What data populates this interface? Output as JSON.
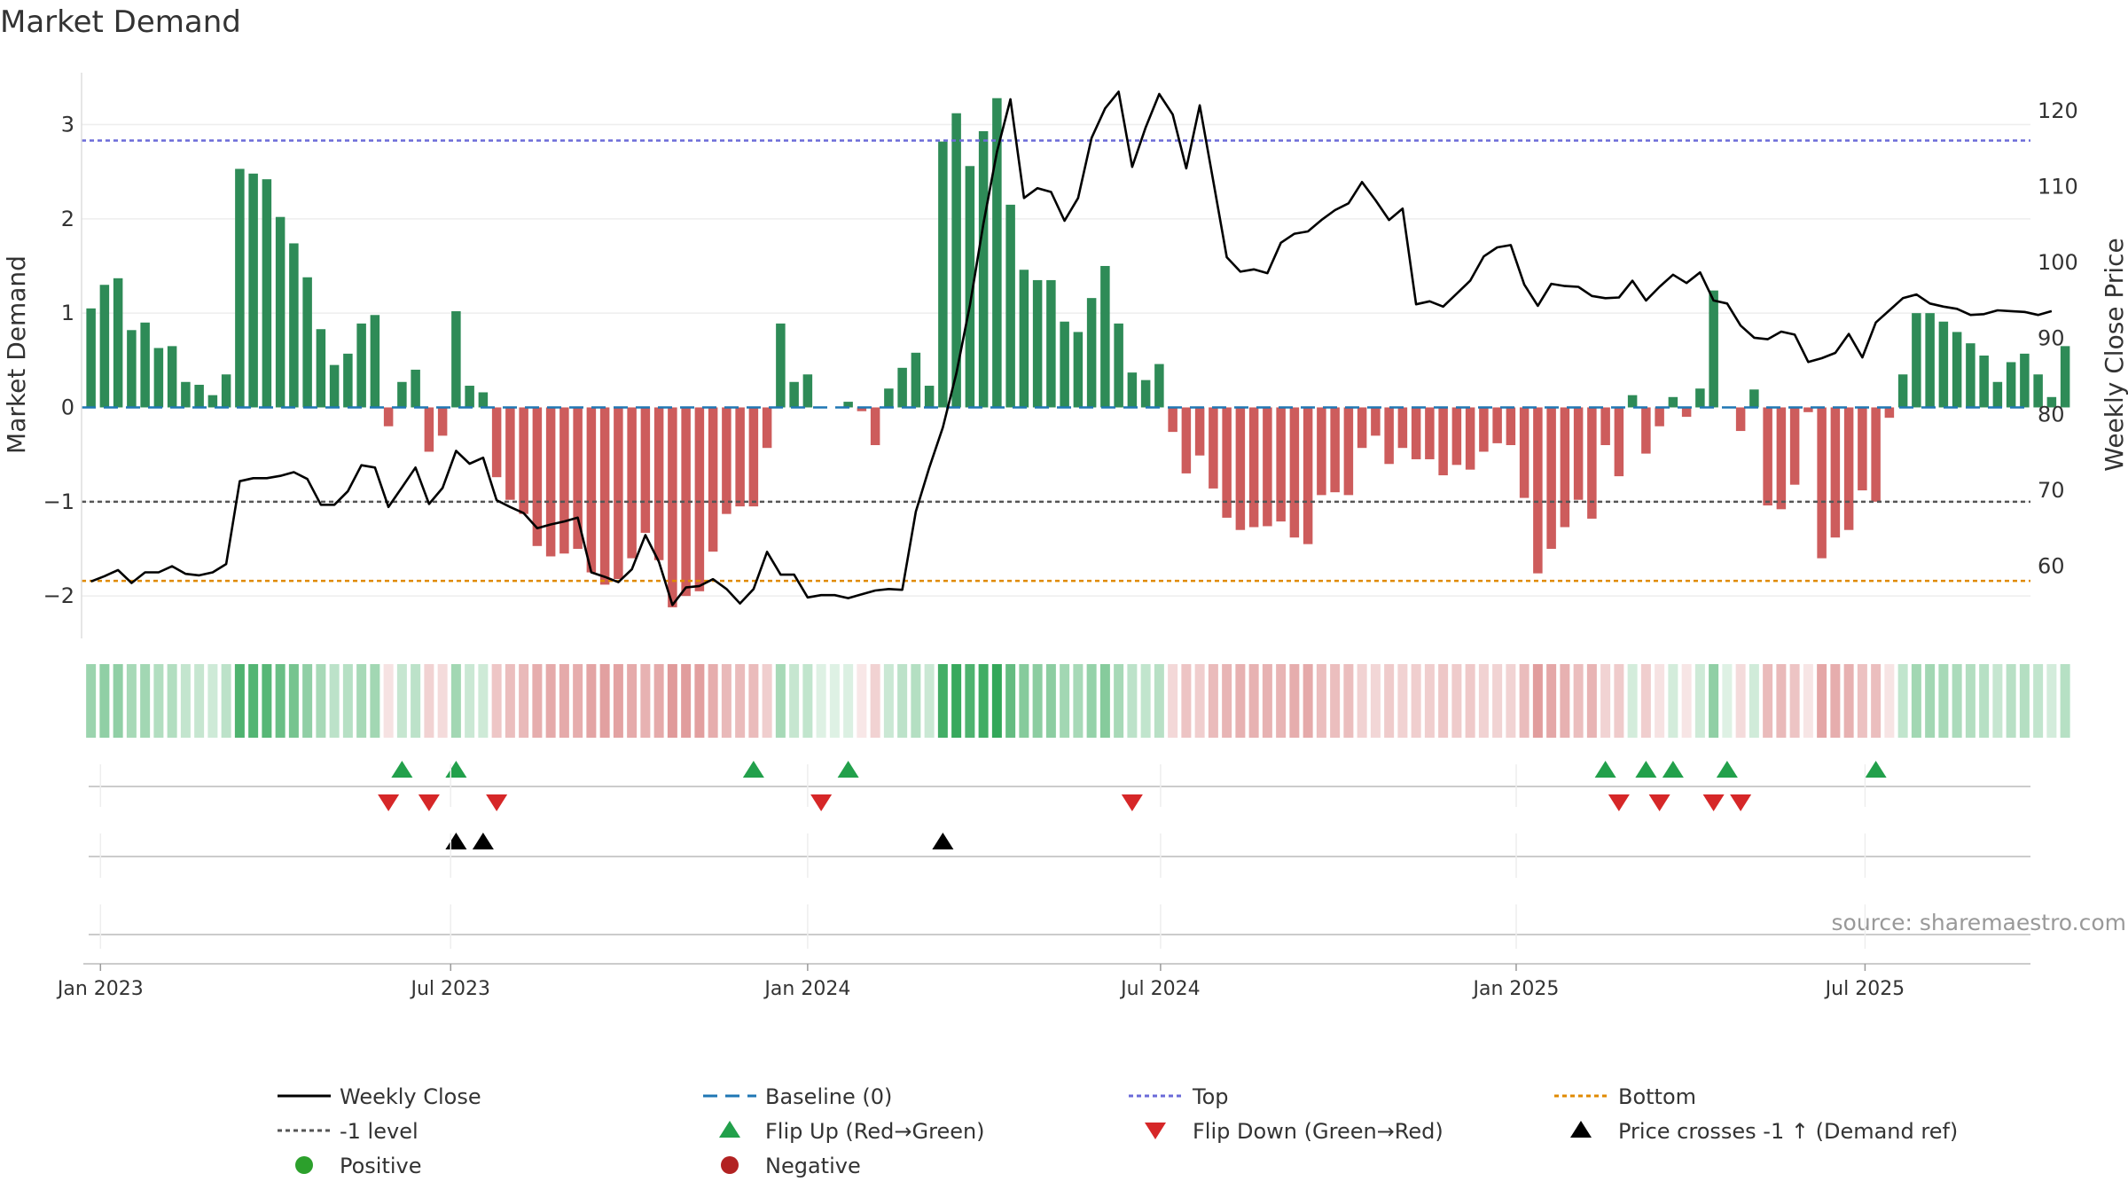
{
  "title": "Market Demand",
  "source": "source: sharemaestro.com",
  "colors": {
    "positive": "#2e8b57",
    "negative": "#cd5c5c",
    "close": "#000000",
    "baseline": "#1f77b4",
    "top": "#6a6ad8",
    "bottom": "#e08a00",
    "minus_one": "#555555",
    "flip_up": "#22a04b",
    "flip_down": "#d62728",
    "cross": "#000000",
    "positive_dot": "#2ca02c",
    "negative_dot": "#b22222"
  },
  "chart_data": {
    "type": "bar+line",
    "title": "Market Demand",
    "ylabel_left": "Market Demand",
    "ylabel_right": "Weekly Close Price",
    "ylim_left": [
      -2.45,
      3.55
    ],
    "ylim_right": [
      50.5,
      125.0
    ],
    "yticks_left": [
      "3",
      "2",
      "1",
      "0",
      "−1",
      "−2"
    ],
    "yticks_right": [
      "120",
      "110",
      "100",
      "90",
      "80",
      "70",
      "60"
    ],
    "xticks": [
      "Jan 2023",
      "Jul 2023",
      "Jan 2024",
      "Jul 2024",
      "Jan 2025",
      "Jul 2025"
    ],
    "reference_lines": {
      "top": 2.83,
      "bottom": -1.84,
      "minus_one": -1.0,
      "baseline": 0
    },
    "demand": [
      1.05,
      1.3,
      1.37,
      0.82,
      0.9,
      0.63,
      0.65,
      0.27,
      0.24,
      0.13,
      0.35,
      2.53,
      2.48,
      2.42,
      2.02,
      1.74,
      1.38,
      0.83,
      0.45,
      0.57,
      0.89,
      0.98,
      -0.2,
      0.27,
      0.4,
      -0.47,
      -0.3,
      1.02,
      0.23,
      0.16,
      -0.74,
      -0.98,
      -1.13,
      -1.47,
      -1.58,
      -1.55,
      -1.5,
      -1.75,
      -1.88,
      -1.82,
      -1.6,
      -1.33,
      -1.62,
      -2.12,
      -2.0,
      -1.95,
      -1.53,
      -1.13,
      -1.05,
      -1.05,
      -0.43,
      0.89,
      0.27,
      0.35,
      0.0,
      0.0,
      0.06,
      -0.04,
      -0.4,
      0.2,
      0.42,
      0.58,
      0.23,
      2.82,
      3.12,
      2.56,
      2.93,
      3.28,
      2.15,
      1.46,
      1.35,
      1.35,
      0.91,
      0.8,
      1.16,
      1.5,
      0.89,
      0.37,
      0.29,
      0.46,
      -0.26,
      -0.7,
      -0.51,
      -0.86,
      -1.17,
      -1.3,
      -1.27,
      -1.26,
      -1.21,
      -1.38,
      -1.45,
      -0.93,
      -0.9,
      -0.93,
      -0.43,
      -0.3,
      -0.6,
      -0.43,
      -0.55,
      -0.55,
      -0.72,
      -0.61,
      -0.66,
      -0.47,
      -0.38,
      -0.4,
      -0.96,
      -1.76,
      -1.5,
      -1.27,
      -0.98,
      -1.18,
      -0.4,
      -0.73,
      0.13,
      -0.49,
      -0.2,
      0.11,
      -0.1,
      0.2,
      1.24,
      0.0,
      -0.25,
      0.19,
      -1.04,
      -1.08,
      -0.82,
      -0.05,
      -1.6,
      -1.38,
      -1.3,
      -0.88,
      -1.0,
      -0.11,
      0.35,
      1.0,
      1.0,
      0.91,
      0.8,
      0.68,
      0.55,
      0.27,
      0.48,
      0.57,
      0.35,
      0.11,
      0.65
    ],
    "weekly_close": [
      58.0,
      58.7,
      59.5,
      57.8,
      59.2,
      59.2,
      60.0,
      59.0,
      58.8,
      59.2,
      60.3,
      71.2,
      71.6,
      71.6,
      71.9,
      72.4,
      71.5,
      68.1,
      68.1,
      69.9,
      73.3,
      73.0,
      67.8,
      70.4,
      73.0,
      68.2,
      70.3,
      75.2,
      73.5,
      74.3,
      68.7,
      67.8,
      67.0,
      65.0,
      65.5,
      65.9,
      66.4,
      59.2,
      58.6,
      57.9,
      59.6,
      64.1,
      60.6,
      54.9,
      57.2,
      57.4,
      58.3,
      57.0,
      55.1,
      57.0,
      61.9,
      58.9,
      58.9,
      55.9,
      56.2,
      56.2,
      55.8,
      56.3,
      56.8,
      57.0,
      56.9,
      67.2,
      73.0,
      78.3,
      85.4,
      94.4,
      105.1,
      114.6,
      121.5,
      108.5,
      109.8,
      109.3,
      105.5,
      108.5,
      116.4,
      120.3,
      122.5,
      112.6,
      117.8,
      122.2,
      119.5,
      112.4,
      120.7,
      110.7,
      100.7,
      98.8,
      99.1,
      98.6,
      102.6,
      103.8,
      104.1,
      105.6,
      106.9,
      107.8,
      110.6,
      108.2,
      105.6,
      107.1,
      94.5,
      94.9,
      94.2,
      95.9,
      97.6,
      100.8,
      102.0,
      102.3,
      97.1,
      94.3,
      97.2,
      96.9,
      96.8,
      95.6,
      95.3,
      95.4,
      97.6,
      95.0,
      96.8,
      98.4,
      97.3,
      98.7,
      95.0,
      94.6,
      91.7,
      90.1,
      89.9,
      90.9,
      90.5,
      86.9,
      87.4,
      88.1,
      90.6,
      87.5,
      92.1,
      93.7,
      95.3,
      95.8,
      94.6,
      94.2,
      93.9,
      93.1,
      93.2,
      93.7,
      93.6,
      93.5,
      93.1,
      93.6
    ],
    "heat_strip_alpha": [
      0.45,
      0.5,
      0.5,
      0.4,
      0.42,
      0.35,
      0.35,
      0.27,
      0.26,
      0.22,
      0.3,
      0.8,
      0.78,
      0.76,
      0.68,
      0.62,
      0.5,
      0.4,
      0.3,
      0.33,
      0.4,
      0.42,
      0.18,
      0.26,
      0.3,
      0.28,
      0.22,
      0.42,
      0.24,
      0.22,
      0.35,
      0.4,
      0.43,
      0.5,
      0.52,
      0.52,
      0.5,
      0.56,
      0.58,
      0.57,
      0.52,
      0.47,
      0.52,
      0.62,
      0.6,
      0.59,
      0.5,
      0.43,
      0.42,
      0.42,
      0.3,
      0.4,
      0.26,
      0.28,
      0.15,
      0.15,
      0.16,
      0.15,
      0.28,
      0.24,
      0.3,
      0.34,
      0.24,
      0.85,
      0.9,
      0.8,
      0.86,
      0.92,
      0.7,
      0.55,
      0.52,
      0.52,
      0.42,
      0.4,
      0.48,
      0.55,
      0.4,
      0.3,
      0.28,
      0.32,
      0.24,
      0.36,
      0.3,
      0.42,
      0.45,
      0.48,
      0.47,
      0.47,
      0.46,
      0.5,
      0.52,
      0.4,
      0.4,
      0.4,
      0.28,
      0.25,
      0.32,
      0.28,
      0.3,
      0.3,
      0.34,
      0.32,
      0.33,
      0.28,
      0.27,
      0.27,
      0.41,
      0.6,
      0.54,
      0.48,
      0.4,
      0.46,
      0.27,
      0.32,
      0.2,
      0.3,
      0.18,
      0.2,
      0.16,
      0.22,
      0.5,
      0.15,
      0.22,
      0.21,
      0.42,
      0.43,
      0.36,
      0.16,
      0.55,
      0.5,
      0.48,
      0.38,
      0.4,
      0.17,
      0.28,
      0.42,
      0.42,
      0.4,
      0.38,
      0.35,
      0.33,
      0.26,
      0.32,
      0.34,
      0.28,
      0.2,
      0.33
    ],
    "flip_up_indices": [
      23,
      27,
      49,
      56,
      112,
      115,
      117,
      121,
      132
    ],
    "flip_down_indices": [
      22,
      25,
      30,
      54,
      77,
      113,
      116,
      120,
      122
    ],
    "price_cross_indices": [
      27,
      29,
      63
    ],
    "legend": [
      "Weekly Close",
      "Baseline (0)",
      "Top",
      "Bottom",
      "-1 level",
      "Flip Up (Red→Green)",
      "Flip Down (Green→Red)",
      "Price crosses -1 ↑ (Demand ref)",
      "Positive",
      "Negative"
    ]
  }
}
